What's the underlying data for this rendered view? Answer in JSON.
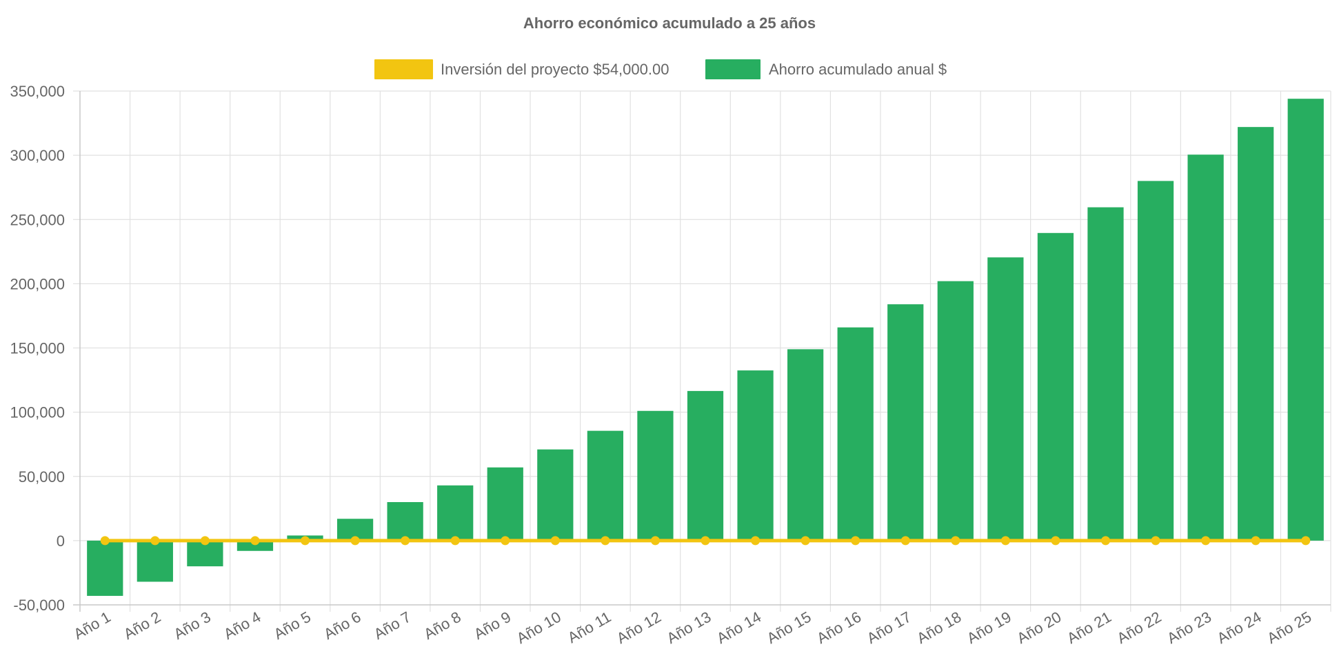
{
  "chart_data": {
    "type": "bar",
    "title": "Ahorro económico acumulado a 25 años",
    "xlabel": "",
    "ylabel": "",
    "categories": [
      "Año 1",
      "Año 2",
      "Año 3",
      "Año 4",
      "Año 5",
      "Año 6",
      "Año 7",
      "Año 8",
      "Año 9",
      "Año 10",
      "Año 11",
      "Año 12",
      "Año 13",
      "Año 14",
      "Año 15",
      "Año 16",
      "Año 17",
      "Año 18",
      "Año 19",
      "Año 20",
      "Año 21",
      "Año 22",
      "Año 23",
      "Año 24",
      "Año 25"
    ],
    "ylim": [
      -50000,
      350000
    ],
    "yticks": [
      -50000,
      0,
      50000,
      100000,
      150000,
      200000,
      250000,
      300000,
      350000
    ],
    "ytick_labels": [
      "-50,000",
      "0",
      "50,000",
      "100,000",
      "150,000",
      "200,000",
      "250,000",
      "300,000",
      "350,000"
    ],
    "grid": true,
    "legend_position": "top-center",
    "series": [
      {
        "name": "Inversión del proyecto $54,000.00",
        "type": "line",
        "color": "#f2c511",
        "values": [
          0,
          0,
          0,
          0,
          0,
          0,
          0,
          0,
          0,
          0,
          0,
          0,
          0,
          0,
          0,
          0,
          0,
          0,
          0,
          0,
          0,
          0,
          0,
          0,
          0
        ]
      },
      {
        "name": "Ahorro acumulado anual $",
        "type": "bar",
        "color": "#27ae60",
        "values": [
          -43000,
          -32000,
          -20000,
          -8000,
          4000,
          17000,
          30000,
          43000,
          57000,
          71000,
          85500,
          101000,
          116500,
          132500,
          149000,
          166000,
          184000,
          202000,
          220500,
          239500,
          259500,
          280000,
          300500,
          322000,
          344000
        ]
      }
    ]
  }
}
